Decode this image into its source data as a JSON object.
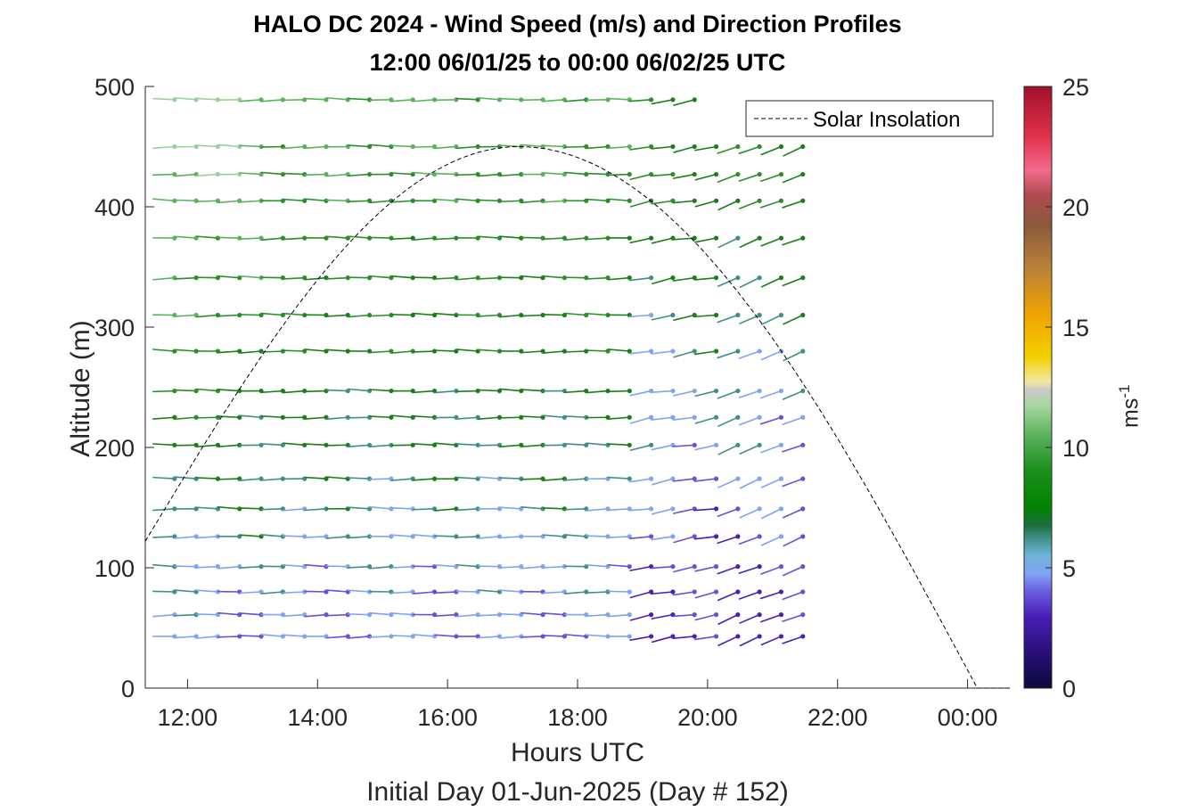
{
  "chart_data": {
    "type": "wind-barb-profile",
    "title": "HALO DC 2024 - Wind Speed (m/s) and Direction Profiles",
    "subtitle": "12:00 06/01/25 to 00:00 06/02/25  UTC",
    "xlabel": "Hours UTC",
    "xsublabel": "Initial Day 01-Jun-2025 (Day # 152)",
    "ylabel": "Altitude (m)",
    "colorbar_label_base": "ms",
    "colorbar_label_exp": "-1",
    "xlim_hours": [
      11.35,
      24.65
    ],
    "ylim": [
      0,
      500
    ],
    "x_ticks": [
      {
        "hour": 12,
        "label": "12:00"
      },
      {
        "hour": 14,
        "label": "14:00"
      },
      {
        "hour": 16,
        "label": "16:00"
      },
      {
        "hour": 18,
        "label": "18:00"
      },
      {
        "hour": 20,
        "label": "20:00"
      },
      {
        "hour": 22,
        "label": "22:00"
      },
      {
        "hour": 24,
        "label": "00:00"
      }
    ],
    "y_ticks": [
      0,
      100,
      200,
      300,
      400,
      500
    ],
    "colorbar_ticks": [
      0,
      5,
      10,
      15,
      20,
      25
    ],
    "colorbar_range": [
      0,
      25
    ],
    "legend": {
      "label": "Solar Insolation",
      "position": "top-right"
    },
    "solar_insolation": {
      "rise_hour": 11.35,
      "rise_alt": 122,
      "peak_hour": 17.1,
      "peak_alt": 450,
      "set_hour": 24.15,
      "end_hour": 24.65
    },
    "time_start_hour": 11.8,
    "time_step_hours": 0.3333,
    "time_count": 30,
    "altitudes": [
      43,
      61,
      80,
      101,
      126,
      149,
      174,
      202,
      225,
      247,
      280,
      310,
      341,
      374,
      405,
      427,
      450,
      489
    ],
    "max_alt_from_index_25": 450
  }
}
